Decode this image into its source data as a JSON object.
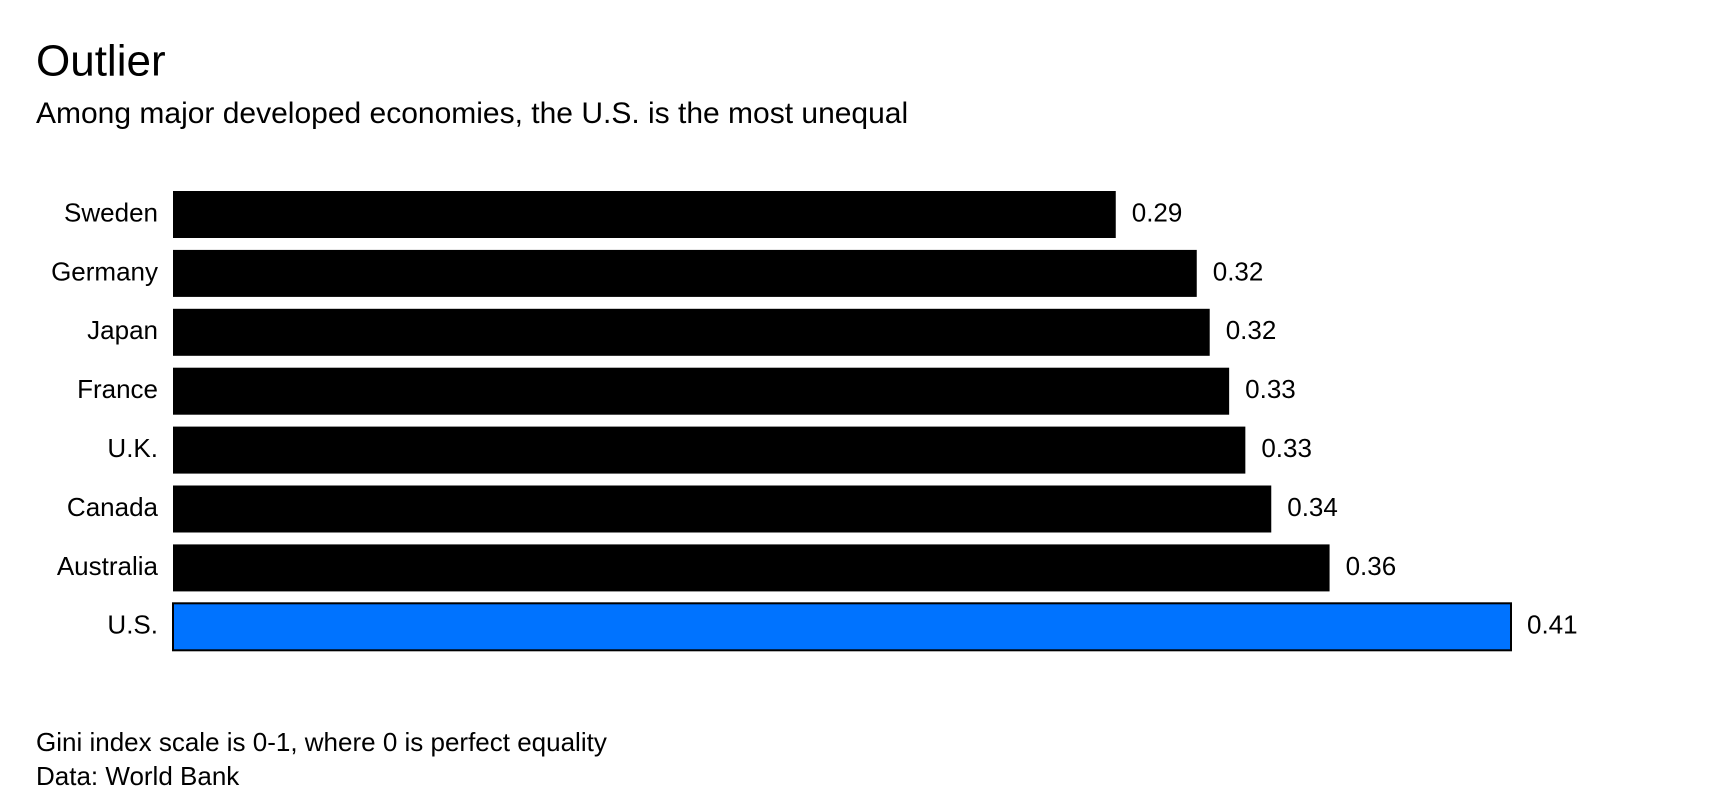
{
  "chart_data": {
    "type": "hbar",
    "title": "Outlier",
    "subtitle": "Among major developed economies, the U.S. is the most unequal",
    "categories": [
      "Sweden",
      "Germany",
      "Japan",
      "France",
      "U.K.",
      "Canada",
      "Australia",
      "U.S."
    ],
    "values": [
      0.291,
      0.316,
      0.32,
      0.326,
      0.331,
      0.339,
      0.357,
      0.413
    ],
    "value_labels": [
      "0.29",
      "0.32",
      "0.32",
      "0.33",
      "0.33",
      "0.34",
      "0.36",
      "0.41"
    ],
    "colors": [
      "#000000",
      "#000000",
      "#000000",
      "#000000",
      "#000000",
      "#000000",
      "#000000",
      "#0073ff"
    ],
    "notes": [
      "Gini index scale is 0-1, where 0 is perfect equality",
      "Data: World Bank"
    ]
  }
}
